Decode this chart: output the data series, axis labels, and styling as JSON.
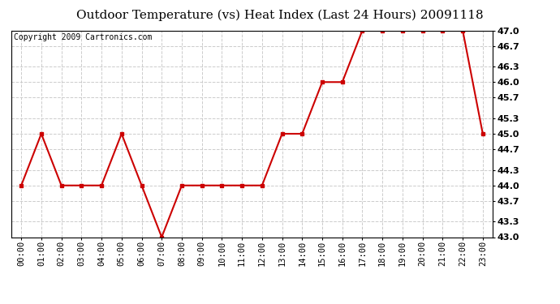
{
  "title": "Outdoor Temperature (vs) Heat Index (Last 24 Hours) 20091118",
  "copyright": "Copyright 2009 Cartronics.com",
  "hours": [
    "00:00",
    "01:00",
    "02:00",
    "03:00",
    "04:00",
    "05:00",
    "06:00",
    "07:00",
    "08:00",
    "09:00",
    "10:00",
    "11:00",
    "12:00",
    "13:00",
    "14:00",
    "15:00",
    "16:00",
    "17:00",
    "18:00",
    "19:00",
    "20:00",
    "21:00",
    "22:00",
    "23:00"
  ],
  "values": [
    44.0,
    45.0,
    44.0,
    44.0,
    44.0,
    45.0,
    44.0,
    43.0,
    44.0,
    44.0,
    44.0,
    44.0,
    44.0,
    45.0,
    45.0,
    46.0,
    46.0,
    47.0,
    47.0,
    47.0,
    47.0,
    47.0,
    47.0,
    45.0
  ],
  "line_color": "#cc0000",
  "marker": "s",
  "marker_size": 3,
  "marker_color": "#cc0000",
  "ylim": [
    43.0,
    47.0
  ],
  "yticks": [
    43.0,
    43.3,
    43.7,
    44.0,
    44.3,
    44.7,
    45.0,
    45.3,
    45.7,
    46.0,
    46.3,
    46.7,
    47.0
  ],
  "background_color": "#ffffff",
  "plot_bg_color": "#ffffff",
  "grid_color": "#cccccc",
  "grid_style": "--",
  "title_fontsize": 11,
  "copyright_fontsize": 7,
  "tick_fontsize": 7.5,
  "ytick_fontsize": 8,
  "line_width": 1.5
}
